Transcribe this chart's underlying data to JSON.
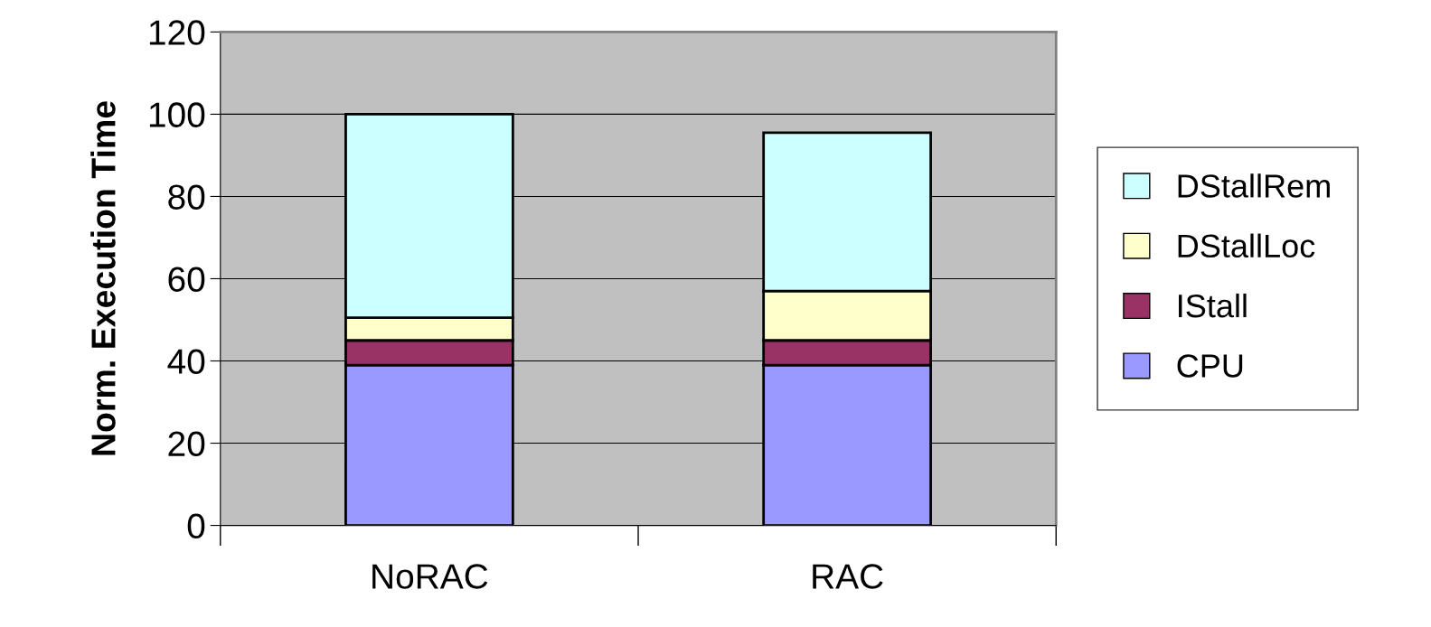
{
  "chart_data": {
    "type": "bar",
    "stacked": true,
    "ylabel": "Norm. Execution Time",
    "categories": [
      "NoRAC",
      "RAC"
    ],
    "series": [
      {
        "name": "CPU",
        "color": "#9999ff",
        "values": [
          39,
          39
        ]
      },
      {
        "name": "IStall",
        "color": "#993366",
        "values": [
          6,
          6
        ]
      },
      {
        "name": "DStallLoc",
        "color": "#ffffcc",
        "values": [
          5.5,
          12
        ]
      },
      {
        "name": "DStallRem",
        "color": "#ccffff",
        "values": [
          49.5,
          38.5
        ]
      }
    ],
    "ylim": [
      0,
      120
    ],
    "yticks": [
      0,
      20,
      40,
      60,
      80,
      100,
      120
    ],
    "grid": "y",
    "legend": "right"
  }
}
